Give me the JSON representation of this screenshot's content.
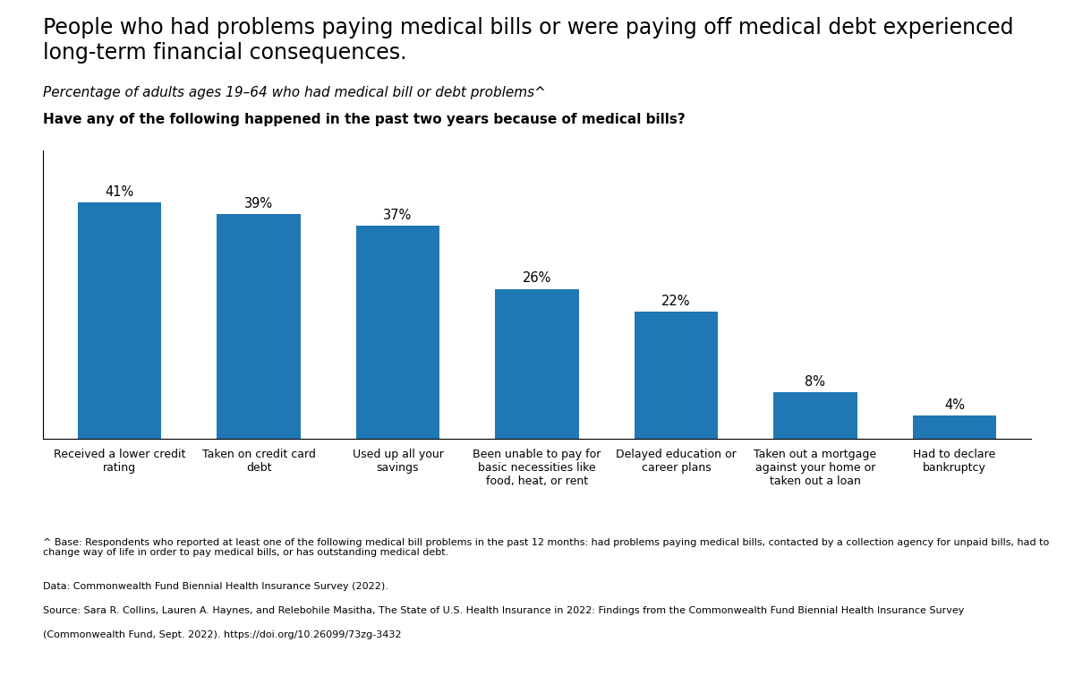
{
  "chart_data": {
    "type": "bar",
    "title": "People who had problems paying medical bills or were paying off medical debt experienced long-term financial consequences.",
    "subtitle": "Percentage of adults ages 19–64 who had medical bill or debt problems^",
    "categories": [
      "Received a lower credit\nrating",
      "Taken on credit card\ndebt",
      "Used up all your\nsavings",
      "Been unable to pay for\nbasic necessities like\nfood, heat, or rent",
      "Delayed education or\ncareer plans",
      "Taken out a mortgage\nagainst your home or\ntaken out a loan",
      "Had to declare\nbankruptcy"
    ],
    "values": [
      41,
      39,
      37,
      26,
      22,
      8,
      4
    ],
    "value_labels": [
      "41%",
      "39%",
      "37%",
      "26%",
      "22%",
      "8%",
      "4%"
    ],
    "data_labels": true,
    "ylim": [
      0,
      50
    ],
    "tick_labels": "x",
    "grid": false,
    "annotations": [
      "Have any of the following happened in the past two years because of medical bills?",
      "^ Base: Respondents who reported at least one of the following medical bill problems in the past 12 months: had problems paying medical bills, contacted by a collection agency for unpaid bills, had to change way of life in order to pay medical bills, or has outstanding medical debt.",
      "Data: Commonwealth Fund Biennial Health Insurance Survey (2022).",
      "Source: Sara R. Collins, Lauren A. Haynes, and Relebohile Masitha, The State of U.S. Health Insurance in 2022: Findings from the Commonwealth Fund Biennial Health Insurance Survey",
      "(Commonwealth Fund, Sept. 2022). https://doi.org/10.26099/73zg-3432"
    ]
  }
}
